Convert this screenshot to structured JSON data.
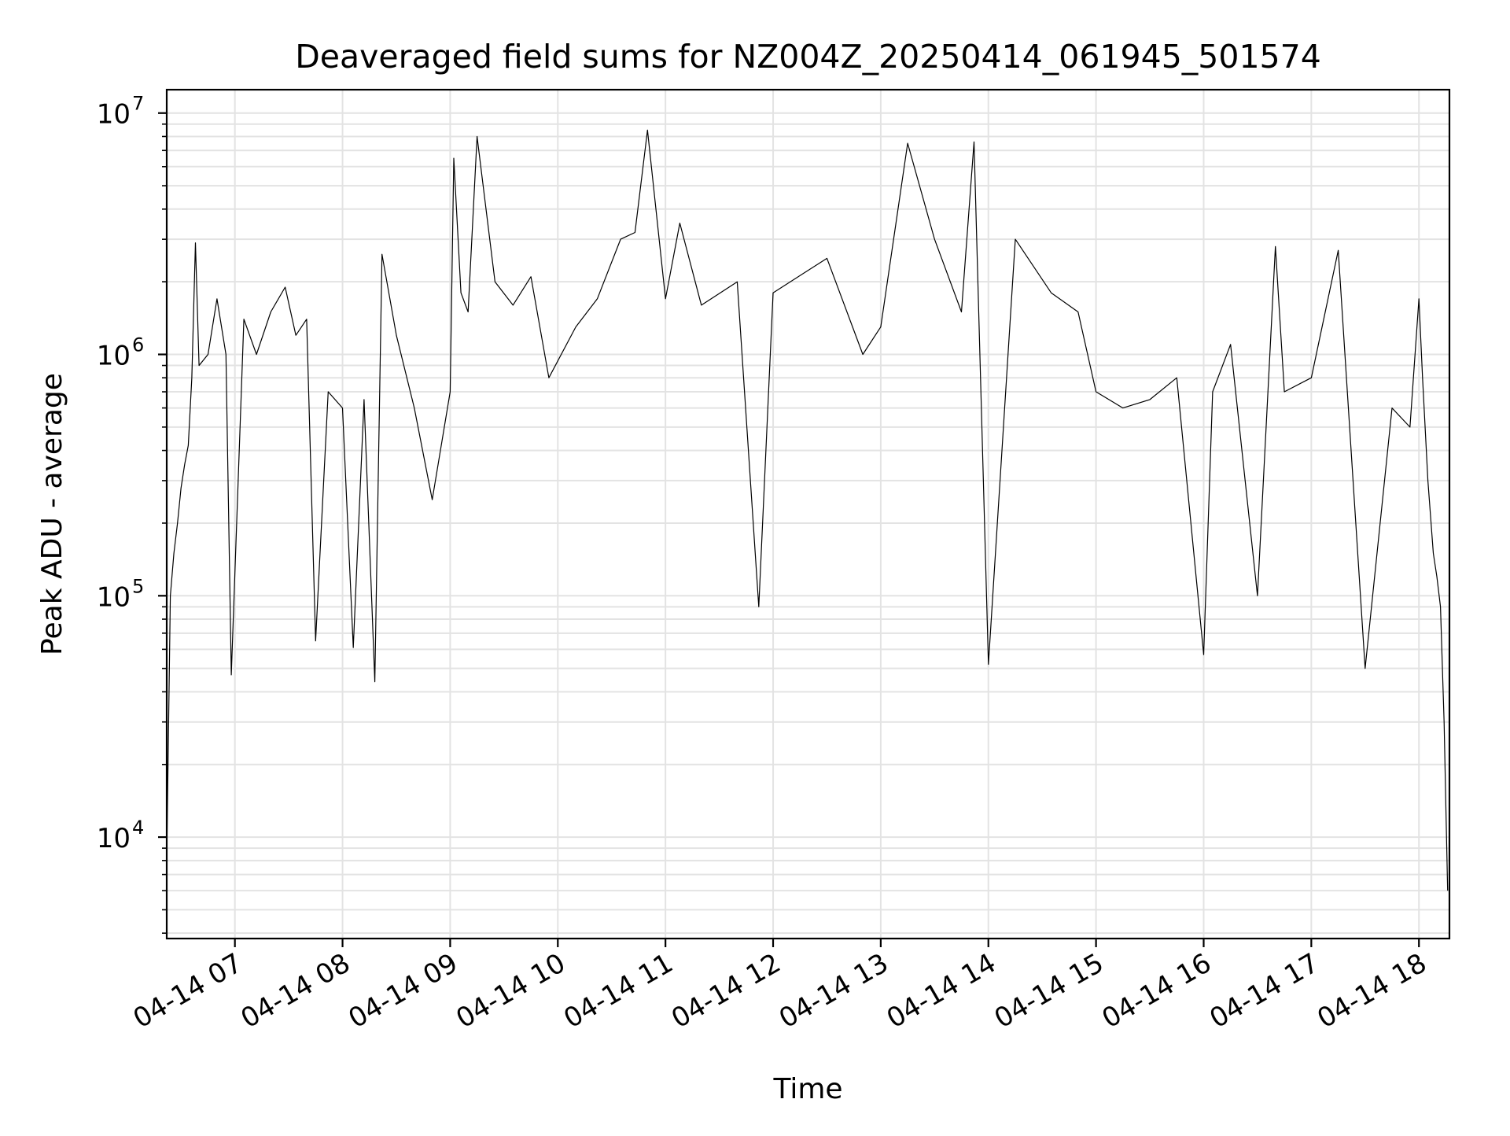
{
  "chart_data": {
    "type": "line",
    "title": "Deaveraged field sums for NZ004Z_20250414_061945_501574",
    "xlabel": "Time",
    "ylabel": "Peak ADU - average",
    "yscale": "log",
    "grid": true,
    "xlim": [
      "2025-04-14 06:22",
      "2025-04-14 18:17"
    ],
    "ylim": [
      3800,
      12500000
    ],
    "x_ticks": [
      {
        "value": "2025-04-14 07:00",
        "label": "04-14 07"
      },
      {
        "value": "2025-04-14 08:00",
        "label": "04-14 08"
      },
      {
        "value": "2025-04-14 09:00",
        "label": "04-14 09"
      },
      {
        "value": "2025-04-14 10:00",
        "label": "04-14 10"
      },
      {
        "value": "2025-04-14 11:00",
        "label": "04-14 11"
      },
      {
        "value": "2025-04-14 12:00",
        "label": "04-14 12"
      },
      {
        "value": "2025-04-14 13:00",
        "label": "04-14 13"
      },
      {
        "value": "2025-04-14 14:00",
        "label": "04-14 14"
      },
      {
        "value": "2025-04-14 15:00",
        "label": "04-14 15"
      },
      {
        "value": "2025-04-14 16:00",
        "label": "04-14 16"
      },
      {
        "value": "2025-04-14 17:00",
        "label": "04-14 17"
      },
      {
        "value": "2025-04-14 18:00",
        "label": "04-14 18"
      }
    ],
    "y_ticks": [
      {
        "value": 10000,
        "base": "10",
        "exponent": "4"
      },
      {
        "value": 100000,
        "base": "10",
        "exponent": "5"
      },
      {
        "value": 1000000,
        "base": "10",
        "exponent": "6"
      },
      {
        "value": 10000000,
        "base": "10",
        "exponent": "7"
      }
    ],
    "series": [
      {
        "color": "#000000",
        "x": [
          "2025-04-14 06:22",
          "2025-04-14 06:24",
          "2025-04-14 06:26",
          "2025-04-14 06:28",
          "2025-04-14 06:30",
          "2025-04-14 06:32",
          "2025-04-14 06:34",
          "2025-04-14 06:36",
          "2025-04-14 06:38",
          "2025-04-14 06:40",
          "2025-04-14 06:45",
          "2025-04-14 06:50",
          "2025-04-14 06:55",
          "2025-04-14 06:58",
          "2025-04-14 07:05",
          "2025-04-14 07:12",
          "2025-04-14 07:20",
          "2025-04-14 07:28",
          "2025-04-14 07:34",
          "2025-04-14 07:40",
          "2025-04-14 07:45",
          "2025-04-14 07:52",
          "2025-04-14 08:00",
          "2025-04-14 08:06",
          "2025-04-14 08:12",
          "2025-04-14 08:18",
          "2025-04-14 08:22",
          "2025-04-14 08:30",
          "2025-04-14 08:40",
          "2025-04-14 08:50",
          "2025-04-14 09:00",
          "2025-04-14 09:02",
          "2025-04-14 09:06",
          "2025-04-14 09:10",
          "2025-04-14 09:15",
          "2025-04-14 09:25",
          "2025-04-14 09:35",
          "2025-04-14 09:45",
          "2025-04-14 09:55",
          "2025-04-14 10:10",
          "2025-04-14 10:22",
          "2025-04-14 10:35",
          "2025-04-14 10:43",
          "2025-04-14 10:50",
          "2025-04-14 11:00",
          "2025-04-14 11:08",
          "2025-04-14 11:20",
          "2025-04-14 11:40",
          "2025-04-14 11:52",
          "2025-04-14 12:00",
          "2025-04-14 12:30",
          "2025-04-14 12:50",
          "2025-04-14 13:00",
          "2025-04-14 13:15",
          "2025-04-14 13:30",
          "2025-04-14 13:45",
          "2025-04-14 13:52",
          "2025-04-14 14:00",
          "2025-04-14 14:15",
          "2025-04-14 14:35",
          "2025-04-14 14:50",
          "2025-04-14 15:00",
          "2025-04-14 15:15",
          "2025-04-14 15:30",
          "2025-04-14 15:45",
          "2025-04-14 16:00",
          "2025-04-14 16:05",
          "2025-04-14 16:15",
          "2025-04-14 16:30",
          "2025-04-14 16:40",
          "2025-04-14 16:45",
          "2025-04-14 17:00",
          "2025-04-14 17:15",
          "2025-04-14 17:30",
          "2025-04-14 17:45",
          "2025-04-14 17:55",
          "2025-04-14 18:00",
          "2025-04-14 18:02",
          "2025-04-14 18:05",
          "2025-04-14 18:08",
          "2025-04-14 18:10",
          "2025-04-14 18:12",
          "2025-04-14 18:14",
          "2025-04-14 18:16"
        ],
        "y": [
          8000,
          100000,
          150000,
          200000,
          280000,
          350000,
          420000,
          800000,
          2900000,
          900000,
          1000000,
          1700000,
          1000000,
          47000,
          1400000,
          1000000,
          1500000,
          1900000,
          1200000,
          1400000,
          65000,
          700000,
          600000,
          61000,
          650000,
          44000,
          2600000,
          1200000,
          600000,
          250000,
          700000,
          6500000,
          1800000,
          1500000,
          8000000,
          2000000,
          1600000,
          2100000,
          800000,
          1300000,
          1700000,
          3000000,
          3200000,
          8500000,
          1700000,
          3500000,
          1600000,
          2000000,
          90000,
          1800000,
          2500000,
          1000000,
          1300000,
          7500000,
          3000000,
          1500000,
          7600000,
          52000,
          3000000,
          1800000,
          1500000,
          700000,
          600000,
          650000,
          800000,
          57000,
          700000,
          1100000,
          100000,
          2800000,
          700000,
          800000,
          2700000,
          50000,
          600000,
          500000,
          1700000,
          800000,
          300000,
          150000,
          120000,
          90000,
          30000,
          6000
        ]
      }
    ]
  }
}
